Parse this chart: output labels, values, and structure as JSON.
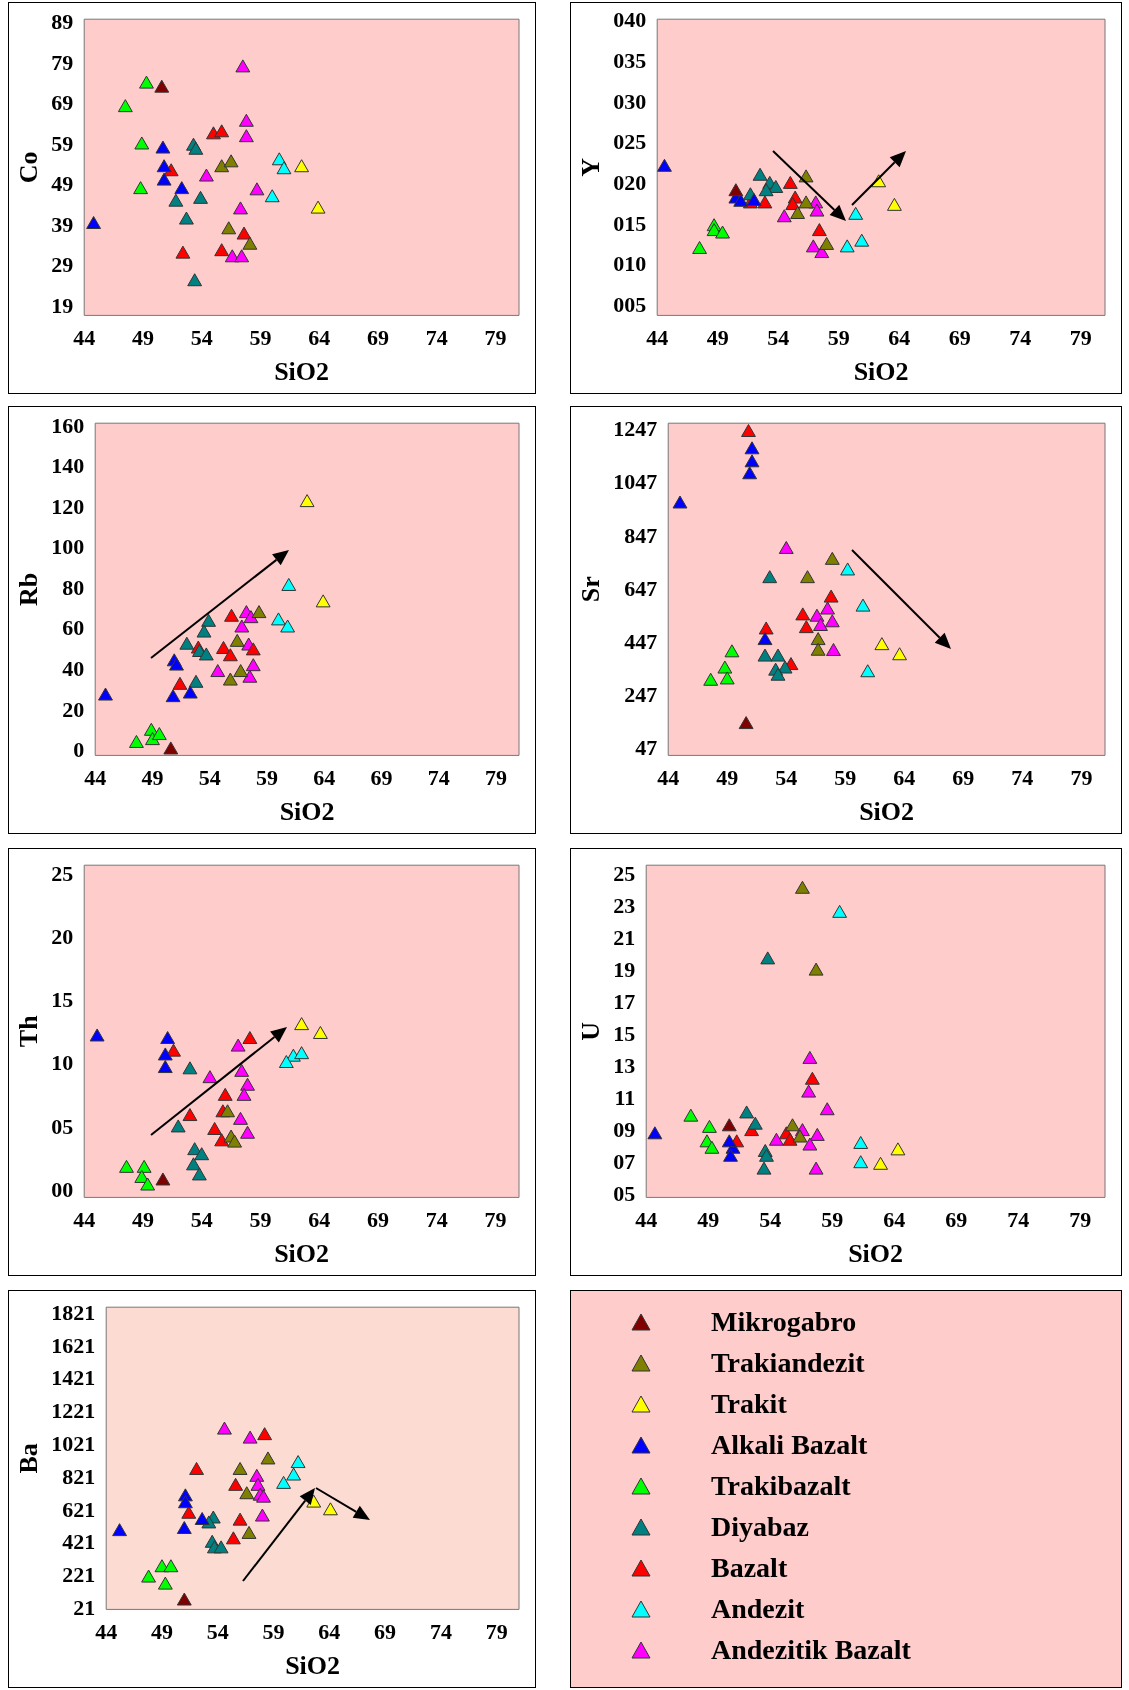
{
  "chart_data": [
    {
      "type": "scatter",
      "xlabel": "SiO2",
      "ylabel": "Co",
      "marker": "triangle",
      "xlim": [
        44,
        81
      ],
      "xticks": [
        44,
        49,
        54,
        59,
        64,
        69,
        74,
        79
      ],
      "ylim": [
        17,
        90
      ],
      "yticks": [
        19,
        29,
        39,
        49,
        59,
        69,
        79,
        89
      ],
      "series": [
        {
          "color": "#800000",
          "x": [
            50.6
          ],
          "values": [
            73.0
          ]
        },
        {
          "color": "#808000",
          "x": [
            55.7,
            56.5,
            56.3,
            58.1
          ],
          "values": [
            53.4,
            54.6,
            38.1,
            34.3
          ]
        },
        {
          "color": "#ffff00",
          "x": [
            62.5,
            63.9
          ],
          "values": [
            53.4,
            43.2
          ]
        },
        {
          "color": "#0000ff",
          "x": [
            44.8,
            50.7,
            50.8,
            50.8,
            52.3
          ],
          "values": [
            39.4,
            58.0,
            53.4,
            50.1,
            48.0
          ]
        },
        {
          "color": "#00ff00",
          "x": [
            49.3,
            47.5,
            48.9,
            48.8
          ],
          "values": [
            74.0,
            68.2,
            59.0,
            48.0
          ]
        },
        {
          "color": "#008080",
          "x": [
            53.3,
            53.5,
            51.8,
            53.9,
            52.7,
            53.4
          ],
          "values": [
            58.7,
            57.7,
            44.9,
            45.6,
            40.5,
            25.3
          ]
        },
        {
          "color": "#ff0000",
          "x": [
            51.4,
            55.0,
            55.7,
            52.4,
            55.7,
            57.6
          ],
          "values": [
            52.4,
            61.5,
            62.0,
            32.1,
            32.7,
            36.8
          ]
        },
        {
          "color": "#00ffff",
          "x": [
            60.6,
            61.0,
            60.0
          ],
          "values": [
            55.1,
            52.9,
            46.0
          ]
        },
        {
          "color": "#ff00ff",
          "x": [
            57.5,
            57.8,
            57.8,
            54.4,
            58.7,
            57.3,
            56.6,
            57.4
          ],
          "values": [
            78.0,
            64.6,
            60.8,
            51.1,
            47.7,
            43.0,
            31.2,
            31.2
          ]
        }
      ]
    },
    {
      "type": "scatter",
      "xlabel": "SiO2",
      "ylabel": "Y",
      "marker": "triangle",
      "xlim": [
        44,
        81
      ],
      "xticks": [
        44,
        49,
        54,
        59,
        64,
        69,
        74,
        79
      ],
      "ylim": [
        3.9,
        40.3
      ],
      "yticks": [
        {
          "value": 5,
          "label": "005"
        },
        {
          "value": 10,
          "label": "010"
        },
        {
          "value": 15,
          "label": "015"
        },
        {
          "value": 20,
          "label": "020"
        },
        {
          "value": 25,
          "label": "025"
        },
        {
          "value": 30,
          "label": "030"
        },
        {
          "value": 35,
          "label": "035"
        },
        {
          "value": 40,
          "label": "040"
        }
      ],
      "series": [
        {
          "color": "#800000",
          "x": [
            50.5
          ],
          "values": [
            19.1
          ]
        },
        {
          "color": "#808000",
          "x": [
            56.3,
            56.3,
            55.6,
            58.0
          ],
          "values": [
            20.8,
            17.6,
            16.3,
            12.5
          ]
        },
        {
          "color": "#ffff00",
          "x": [
            62.3,
            63.6
          ],
          "values": [
            20.2,
            17.3
          ]
        },
        {
          "color": "#0000ff",
          "x": [
            44.6,
            50.5,
            50.9,
            52.0
          ],
          "values": [
            22.1,
            18.2,
            17.8,
            17.9
          ]
        },
        {
          "color": "#00ff00",
          "x": [
            47.5,
            48.7,
            48.7,
            49.4
          ],
          "values": [
            12.0,
            14.8,
            14.2,
            13.9
          ]
        },
        {
          "color": "#008080",
          "x": [
            52.5,
            53.3,
            53.8,
            53.0,
            51.7
          ],
          "values": [
            21.0,
            20.0,
            19.5,
            19.1,
            18.6
          ]
        },
        {
          "color": "#ff0000",
          "x": [
            51.7,
            52.9,
            55.0,
            55.4,
            55.2,
            57.4
          ],
          "values": [
            17.6,
            17.6,
            20.0,
            18.2,
            17.4,
            14.2
          ]
        },
        {
          "color": "#00ffff",
          "x": [
            60.4,
            59.7,
            60.9
          ],
          "values": [
            16.2,
            12.2,
            12.9
          ]
        },
        {
          "color": "#ff00ff",
          "x": [
            54.5,
            57.1,
            57.2,
            56.9,
            57.6
          ],
          "values": [
            15.9,
            17.6,
            16.6,
            12.2,
            11.5
          ]
        }
      ]
    },
    {
      "type": "scatter",
      "xlabel": "SiO2",
      "ylabel": "Rb",
      "marker": "triangle",
      "xlim": [
        44,
        81
      ],
      "xticks": [
        44,
        49,
        54,
        59,
        64,
        69,
        74,
        79
      ],
      "ylim": [
        -2,
        162
      ],
      "yticks": [
        0,
        20,
        40,
        60,
        80,
        100,
        120,
        140,
        160
      ],
      "series": [
        {
          "color": "#800000",
          "x": [
            50.6
          ],
          "values": [
            0.7
          ]
        },
        {
          "color": "#808000",
          "x": [
            58.3,
            56.4,
            55.8,
            56.7
          ],
          "values": [
            68,
            53.8,
            34.7,
            38.9
          ]
        },
        {
          "color": "#ffff00",
          "x": [
            62.5,
            63.9
          ],
          "values": [
            122.8,
            73.3
          ]
        },
        {
          "color": "#0000ff",
          "x": [
            44.9,
            50.9,
            51.1,
            50.8,
            52.3
          ],
          "values": [
            27.3,
            44.2,
            42.1,
            26.5,
            28.3
          ]
        },
        {
          "color": "#00ff00",
          "x": [
            47.6,
            48.9,
            49.0,
            49.6
          ],
          "values": [
            3.9,
            9.9,
            5.3,
            7.8
          ]
        },
        {
          "color": "#008080",
          "x": [
            53.9,
            53.5,
            52.0,
            53.1,
            53.7,
            52.8
          ],
          "values": [
            63.7,
            58.4,
            52.4,
            48.8,
            47.1,
            33.6
          ]
        },
        {
          "color": "#ff0000",
          "x": [
            51.4,
            53.0,
            55.2,
            55.9,
            55.8,
            57.8
          ],
          "values": [
            32.6,
            50.5,
            50.3,
            66.2,
            46.7,
            49.6
          ]
        },
        {
          "color": "#00ffff",
          "x": [
            60.9,
            60.0,
            60.8
          ],
          "values": [
            81.4,
            64.4,
            60.9
          ]
        },
        {
          "color": "#ff00ff",
          "x": [
            57.2,
            57.6,
            56.8,
            57.4,
            54.7,
            57.8,
            57.5
          ],
          "values": [
            68.0,
            65.5,
            60.9,
            52.0,
            38.9,
            41.8,
            36.1
          ]
        }
      ]
    },
    {
      "type": "scatter",
      "xlabel": "SiO2",
      "ylabel": "Sr",
      "marker": "triangle",
      "xlim": [
        44,
        81
      ],
      "xticks": [
        44,
        49,
        54,
        59,
        64,
        69,
        74,
        79
      ],
      "ylim": [
        25,
        1275
      ],
      "yticks": [
        47,
        247,
        447,
        647,
        847,
        1047,
        1247
      ],
      "series": [
        {
          "color": "#800000",
          "x": [
            50.6
          ],
          "values": [
            141
          ]
        },
        {
          "color": "#808000",
          "x": [
            57.9,
            55.8,
            56.7,
            56.7
          ],
          "values": [
            759,
            690,
            457,
            417
          ]
        },
        {
          "color": "#ffff00",
          "x": [
            62.1,
            63.6
          ],
          "values": [
            438,
            400
          ]
        },
        {
          "color": "#0000ff",
          "x": [
            45.0,
            51.1,
            51.1,
            50.9,
            52.2
          ],
          "values": [
            971,
            1175,
            1126,
            1081,
            457
          ]
        },
        {
          "color": "#00ff00",
          "x": [
            47.6,
            49.4,
            48.8,
            49.0
          ],
          "values": [
            304,
            411,
            350,
            309
          ]
        },
        {
          "color": "#008080",
          "x": [
            52.6,
            52.2,
            53.3,
            53.9,
            53.1,
            53.3
          ],
          "values": [
            690,
            395,
            395,
            350,
            342,
            323
          ]
        },
        {
          "color": "#ff0000",
          "x": [
            50.8,
            52.3,
            55.4,
            55.7,
            57.8,
            54.4
          ],
          "values": [
            1240,
            497,
            550,
            502,
            617,
            363
          ]
        },
        {
          "color": "#00ffff",
          "x": [
            59.2,
            60.5,
            60.9
          ],
          "values": [
            719,
            583,
            336
          ]
        },
        {
          "color": "#ff00ff",
          "x": [
            54.0,
            56.6,
            56.9,
            57.5,
            57.9,
            58.0
          ],
          "values": [
            800,
            545,
            510,
            572,
            524,
            416
          ]
        }
      ]
    },
    {
      "type": "scatter",
      "xlabel": "SiO2",
      "ylabel": "Th",
      "marker": "triangle",
      "xlim": [
        44,
        81
      ],
      "xticks": [
        44,
        49,
        54,
        59,
        64,
        69,
        74,
        79
      ],
      "ylim": [
        -0.5,
        25.8
      ],
      "yticks": [
        {
          "value": 0,
          "label": "00"
        },
        {
          "value": 5,
          "label": "05"
        },
        10,
        15,
        20,
        25
      ],
      "series": [
        {
          "color": "#800000",
          "x": [
            50.7
          ],
          "values": [
            0.8
          ]
        },
        {
          "color": "#808000",
          "x": [
            56.2,
            56.5,
            56.8
          ],
          "values": [
            6.2,
            4.2,
            3.8
          ]
        },
        {
          "color": "#ffff00",
          "x": [
            62.5,
            64.1
          ],
          "values": [
            13.1,
            12.4
          ]
        },
        {
          "color": "#0000ff",
          "x": [
            45.1,
            51.1,
            50.9,
            50.9
          ],
          "values": [
            12.2,
            12.0,
            10.7,
            9.7
          ]
        },
        {
          "color": "#00ff00",
          "x": [
            47.6,
            49.1,
            48.9,
            49.4
          ],
          "values": [
            1.8,
            1.8,
            1.0,
            0.4
          ]
        },
        {
          "color": "#008080",
          "x": [
            53.0,
            52.0,
            53.4,
            54.0,
            53.3,
            53.8
          ],
          "values": [
            9.6,
            5.0,
            3.2,
            2.8,
            2.0,
            1.2
          ]
        },
        {
          "color": "#ff0000",
          "x": [
            51.6,
            53.0,
            58.1,
            56.0,
            55.8,
            55.1,
            55.7
          ],
          "values": [
            11.0,
            5.9,
            12.0,
            7.5,
            6.2,
            4.8,
            3.9
          ]
        },
        {
          "color": "#00ffff",
          "x": [
            61.8,
            61.2,
            62.5
          ],
          "values": [
            10.6,
            10.1,
            10.8
          ]
        },
        {
          "color": "#ff00ff",
          "x": [
            54.7,
            57.1,
            57.4,
            57.9,
            57.6,
            57.3,
            57.9
          ],
          "values": [
            8.9,
            11.4,
            9.4,
            8.3,
            7.5,
            5.6,
            4.5
          ]
        }
      ]
    },
    {
      "type": "scatter",
      "xlabel": "SiO2",
      "ylabel": "U",
      "marker": "triangle",
      "xlim": [
        44,
        81
      ],
      "xticks": [
        44,
        49,
        54,
        59,
        64,
        69,
        74,
        79
      ],
      "ylim": [
        4.9,
        25.6
      ],
      "yticks": [
        {
          "value": 5,
          "label": "05"
        },
        {
          "value": 7,
          "label": "07"
        },
        {
          "value": 9,
          "label": "09"
        },
        11,
        13,
        15,
        17,
        19,
        21,
        23,
        25
      ],
      "series": [
        {
          "color": "#800000",
          "x": [
            50.7
          ],
          "values": [
            9.3
          ]
        },
        {
          "color": "#808000",
          "x": [
            56.6,
            57.7,
            55.8,
            56.4
          ],
          "values": [
            24.1,
            19.0,
            9.3,
            8.6
          ]
        },
        {
          "color": "#ffff00",
          "x": [
            62.9,
            64.3
          ],
          "values": [
            6.9,
            7.8
          ]
        },
        {
          "color": "#0000ff",
          "x": [
            44.7,
            51.0,
            50.8,
            50.7
          ],
          "values": [
            8.8,
            7.9,
            7.4,
            8.3
          ]
        },
        {
          "color": "#00ff00",
          "x": [
            47.6,
            49.1,
            48.9,
            49.3
          ],
          "values": [
            9.9,
            9.2,
            8.3,
            7.9
          ]
        },
        {
          "color": "#008080",
          "x": [
            53.8,
            52.1,
            52.8,
            53.6,
            53.7,
            53.5
          ],
          "values": [
            19.7,
            10.1,
            9.4,
            7.7,
            7.4,
            6.6
          ]
        },
        {
          "color": "#ff0000",
          "x": [
            51.3,
            52.5,
            55.3,
            55.6,
            57.4
          ],
          "values": [
            8.3,
            9.0,
            8.8,
            8.4,
            12.2
          ]
        },
        {
          "color": "#00ffff",
          "x": [
            59.6,
            61.3,
            61.3
          ],
          "values": [
            22.6,
            8.2,
            7.0
          ]
        },
        {
          "color": "#ff00ff",
          "x": [
            57.2,
            57.1,
            58.6,
            54.5,
            56.6,
            57.8,
            57.2,
            57.7
          ],
          "values": [
            13.5,
            11.4,
            10.3,
            8.4,
            9.0,
            8.7,
            8.1,
            6.6
          ]
        }
      ]
    },
    {
      "type": "scatter",
      "xlabel": "SiO2",
      "ylabel": "Ba",
      "marker": "triangle",
      "legend": "right",
      "xlim": [
        44,
        81
      ],
      "xticks": [
        44,
        49,
        54,
        59,
        64,
        69,
        74,
        79
      ],
      "ylim": [
        21,
        1863
      ],
      "yticks": [
        21,
        221,
        421,
        621,
        821,
        1021,
        1221,
        1421,
        1621,
        1821
      ],
      "series": [
        {
          "name": "Mikrogabro",
          "color": "#800000",
          "x": [
            51.0
          ],
          "values": [
            72
          ]
        },
        {
          "name": "Trakiandezit",
          "color": "#808000",
          "x": [
            58.5,
            56.0,
            56.6,
            56.8
          ],
          "values": [
            932,
            868,
            720,
            478
          ]
        },
        {
          "name": "Trakit",
          "color": "#ffff00",
          "x": [
            62.6,
            64.1
          ],
          "values": [
            669,
            622
          ]
        },
        {
          "name": "Alkali Bazalt",
          "color": "#0000ff",
          "x": [
            45.2,
            51.1,
            51.1,
            52.6,
            51.0
          ],
          "values": [
            495,
            707,
            665,
            563,
            508
          ]
        },
        {
          "name": "Trakibazalt",
          "color": "#00ff00",
          "x": [
            47.8,
            49.0,
            49.8,
            49.3
          ],
          "values": [
            212,
            275,
            275,
            169
          ]
        },
        {
          "name": "Diyabaz",
          "color": "#008080",
          "x": [
            53.6,
            53.2,
            53.5,
            53.7,
            54.3
          ],
          "values": [
            572,
            542,
            424,
            390,
            390
          ]
        },
        {
          "name": "Bazalt",
          "color": "#ff0000",
          "x": [
            52.1,
            58.2,
            55.6,
            56.0,
            55.4,
            51.4
          ],
          "values": [
            868,
            1080,
            771,
            559,
            445,
            601
          ]
        },
        {
          "name": "Andezit",
          "color": "#00ffff",
          "x": [
            61.2,
            60.8,
            59.9
          ],
          "values": [
            910,
            834,
            783
          ]
        },
        {
          "name": "Andezitik Bazalt",
          "color": "#ff00ff",
          "x": [
            54.6,
            56.9,
            57.5,
            57.6,
            57.8,
            58.1,
            58.0
          ],
          "values": [
            1114,
            1059,
            826,
            771,
            711,
            699,
            584
          ]
        }
      ]
    }
  ]
}
